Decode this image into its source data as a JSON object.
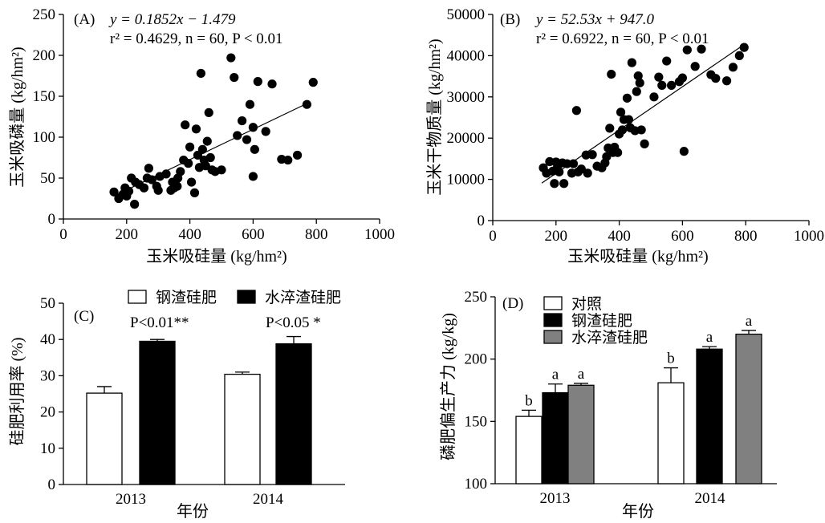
{
  "chart_data": [
    {
      "panel": "(A)",
      "type": "scatter",
      "xlabel": "玉米吸硅量 (kg/hm²)",
      "ylabel": "玉米吸磷量 (kg/hm²)",
      "xlim": [
        0,
        1000
      ],
      "ylim": [
        0,
        250
      ],
      "xticks": [
        0,
        200,
        400,
        600,
        800,
        1000
      ],
      "yticks": [
        0,
        50,
        100,
        150,
        200,
        250
      ],
      "annotations": [
        "y = 0.1852x − 1.479",
        "r² = 0.4629, n = 60, P < 0.01"
      ],
      "fit": {
        "slope": 0.1852,
        "intercept": -1.479,
        "x_range": [
          160,
          780
        ]
      },
      "points": [
        [
          160,
          33
        ],
        [
          175,
          25
        ],
        [
          188,
          30
        ],
        [
          195,
          38
        ],
        [
          200,
          28
        ],
        [
          207,
          34
        ],
        [
          215,
          50
        ],
        [
          225,
          18
        ],
        [
          228,
          45
        ],
        [
          240,
          42
        ],
        [
          255,
          38
        ],
        [
          265,
          50
        ],
        [
          270,
          62
        ],
        [
          280,
          48
        ],
        [
          295,
          40
        ],
        [
          300,
          35
        ],
        [
          305,
          52
        ],
        [
          325,
          55
        ],
        [
          340,
          35
        ],
        [
          345,
          45
        ],
        [
          350,
          38
        ],
        [
          360,
          40
        ],
        [
          362,
          50
        ],
        [
          370,
          58
        ],
        [
          380,
          72
        ],
        [
          385,
          115
        ],
        [
          395,
          68
        ],
        [
          400,
          88
        ],
        [
          405,
          45
        ],
        [
          415,
          32
        ],
        [
          420,
          110
        ],
        [
          425,
          78
        ],
        [
          430,
          63
        ],
        [
          435,
          178
        ],
        [
          440,
          85
        ],
        [
          445,
          72
        ],
        [
          450,
          65
        ],
        [
          455,
          95
        ],
        [
          460,
          130
        ],
        [
          465,
          75
        ],
        [
          470,
          60
        ],
        [
          480,
          58
        ],
        [
          500,
          60
        ],
        [
          530,
          197
        ],
        [
          540,
          173
        ],
        [
          550,
          102
        ],
        [
          565,
          120
        ],
        [
          580,
          97
        ],
        [
          590,
          140
        ],
        [
          600,
          112
        ],
        [
          600,
          52
        ],
        [
          605,
          85
        ],
        [
          615,
          168
        ],
        [
          640,
          107
        ],
        [
          660,
          165
        ],
        [
          690,
          73
        ],
        [
          710,
          72
        ],
        [
          740,
          78
        ],
        [
          770,
          140
        ],
        [
          790,
          167
        ]
      ]
    },
    {
      "panel": "(B)",
      "type": "scatter",
      "xlabel": "玉米吸硅量 (kg/hm²)",
      "ylabel": "玉米干物质量 (kg/hm²)",
      "xlim": [
        0,
        1000
      ],
      "ylim": [
        0,
        50000
      ],
      "xticks": [
        0,
        200,
        400,
        600,
        800,
        1000
      ],
      "yticks": [
        0,
        10000,
        20000,
        30000,
        40000,
        50000
      ],
      "annotations": [
        "y = 52.53x + 947.0",
        "r² = 0.6922, n = 60, P < 0.01"
      ],
      "fit": {
        "slope": 52.53,
        "intercept": 947.0,
        "x_range": [
          155,
          800
        ]
      },
      "points": [
        [
          160,
          12800
        ],
        [
          170,
          11500
        ],
        [
          180,
          14300
        ],
        [
          190,
          12000
        ],
        [
          195,
          9000
        ],
        [
          200,
          14200
        ],
        [
          205,
          13200
        ],
        [
          210,
          11800
        ],
        [
          220,
          14000
        ],
        [
          225,
          9000
        ],
        [
          235,
          13800
        ],
        [
          250,
          11500
        ],
        [
          255,
          13800
        ],
        [
          265,
          26700
        ],
        [
          270,
          11800
        ],
        [
          280,
          12500
        ],
        [
          295,
          15900
        ],
        [
          300,
          11500
        ],
        [
          315,
          16000
        ],
        [
          330,
          13200
        ],
        [
          345,
          12800
        ],
        [
          355,
          14000
        ],
        [
          360,
          15500
        ],
        [
          365,
          17600
        ],
        [
          370,
          22400
        ],
        [
          375,
          35500
        ],
        [
          380,
          16500
        ],
        [
          385,
          17800
        ],
        [
          395,
          16500
        ],
        [
          400,
          21000
        ],
        [
          405,
          26300
        ],
        [
          410,
          22000
        ],
        [
          415,
          24500
        ],
        [
          425,
          29700
        ],
        [
          430,
          24500
        ],
        [
          435,
          22500
        ],
        [
          440,
          38300
        ],
        [
          450,
          21800
        ],
        [
          455,
          31300
        ],
        [
          460,
          35100
        ],
        [
          465,
          33400
        ],
        [
          470,
          22000
        ],
        [
          480,
          18600
        ],
        [
          510,
          30000
        ],
        [
          525,
          34800
        ],
        [
          535,
          32800
        ],
        [
          550,
          38700
        ],
        [
          565,
          32800
        ],
        [
          590,
          33700
        ],
        [
          600,
          34600
        ],
        [
          605,
          16800
        ],
        [
          615,
          41400
        ],
        [
          640,
          37400
        ],
        [
          660,
          41600
        ],
        [
          690,
          35400
        ],
        [
          705,
          34500
        ],
        [
          740,
          33900
        ],
        [
          760,
          37200
        ],
        [
          780,
          40000
        ],
        [
          795,
          42000
        ]
      ]
    },
    {
      "panel": "(C)",
      "type": "bar",
      "xlabel": "年份",
      "ylabel": "硅肥利用率 (%)",
      "ylim": [
        0,
        50
      ],
      "yticks": [
        0,
        10,
        20,
        30,
        40,
        50
      ],
      "categories": [
        "2013",
        "2014"
      ],
      "series": [
        {
          "name": "钢渣硅肥",
          "color": "#ffffff",
          "values": [
            25.2,
            30.4
          ],
          "errors": [
            1.8,
            0.6
          ]
        },
        {
          "name": "水淬渣硅肥",
          "color": "#000000",
          "values": [
            39.5,
            38.8
          ],
          "errors": [
            0.5,
            2.0
          ]
        }
      ],
      "annotations": [
        "P<0.01**",
        "P<0.05 *"
      ]
    },
    {
      "panel": "(D)",
      "type": "bar",
      "xlabel": "年份",
      "ylabel": "磷肥偏生产力 (kg/kg)",
      "ylim": [
        100,
        250
      ],
      "yticks": [
        100,
        150,
        200,
        250
      ],
      "categories": [
        "2013",
        "2014"
      ],
      "series": [
        {
          "name": "对照",
          "color": "#ffffff",
          "values": [
            154,
            181
          ],
          "errors": [
            5,
            12
          ],
          "letters": [
            "b",
            "b"
          ]
        },
        {
          "name": "钢渣硅肥",
          "color": "#000000",
          "values": [
            173,
            208
          ],
          "errors": [
            7,
            2
          ],
          "letters": [
            "a",
            "a"
          ]
        },
        {
          "name": "水淬渣硅肥",
          "color": "#808080",
          "values": [
            179,
            220
          ],
          "errors": [
            1.5,
            3
          ],
          "letters": [
            "a",
            "a"
          ]
        }
      ]
    }
  ]
}
